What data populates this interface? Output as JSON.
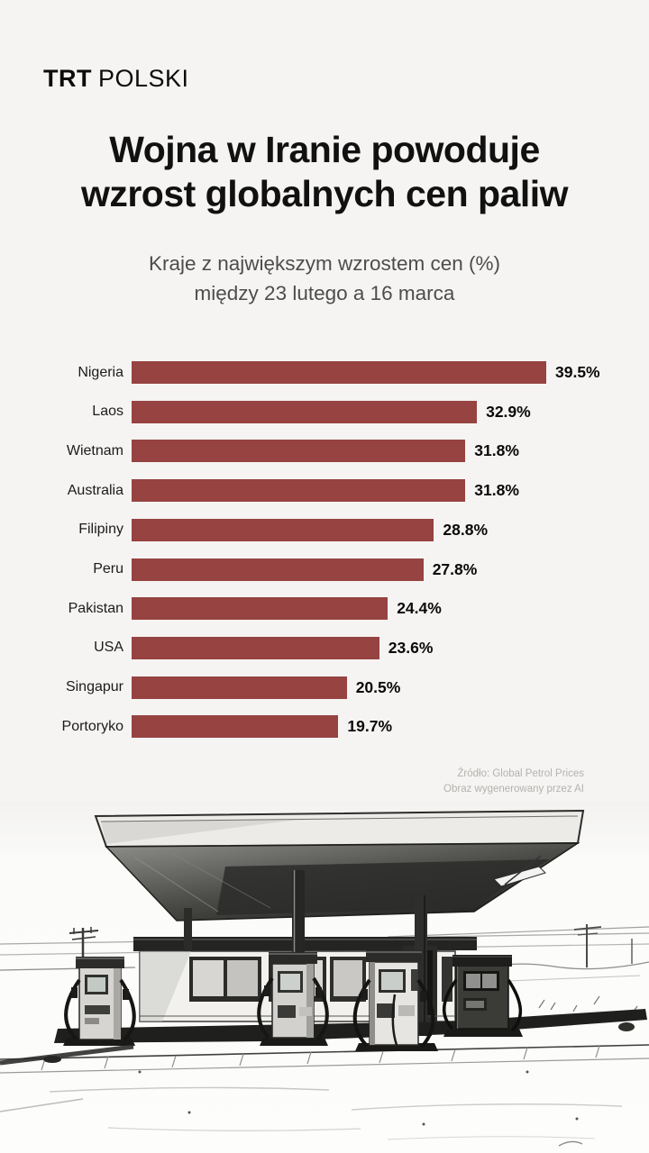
{
  "brand": {
    "logo_primary": "TRT",
    "logo_secondary": "POLSKI"
  },
  "header": {
    "title_line1": "Wojna w Iranie powoduje",
    "title_line2": "wzrost globalnych cen paliw",
    "subtitle_line1": "Kraje z największym wzrostem cen (%)",
    "subtitle_line2": "między 23 lutego a 16 marca"
  },
  "chart_data": {
    "type": "bar",
    "orientation": "horizontal",
    "title": "Kraje z największym wzrostem cen (%) między 23 lutego a 16 marca",
    "xlabel": "",
    "ylabel": "",
    "categories": [
      "Nigeria",
      "Laos",
      "Wietnam",
      "Australia",
      "Filipiny",
      "Peru",
      "Pakistan",
      "USA",
      "Singapur",
      "Portoryko"
    ],
    "values": [
      39.5,
      32.9,
      31.8,
      31.8,
      28.8,
      27.8,
      24.4,
      23.6,
      20.5,
      19.7
    ],
    "value_suffix": "%",
    "xlim": [
      0,
      39.5
    ],
    "grid": false,
    "legend": false,
    "bar_color": "#964342"
  },
  "footer": {
    "source_line1": "Źródło: Global Petrol Prices",
    "source_line2": "Obraz wygenerowany przez AI"
  },
  "illustration": {
    "description": "gas-station-sketch"
  },
  "colors": {
    "page_background": "#f5f4f2",
    "bar": "#964342",
    "title_text": "#111111",
    "subtitle_text": "#4d4d4d",
    "source_text": "#b4b2af"
  }
}
